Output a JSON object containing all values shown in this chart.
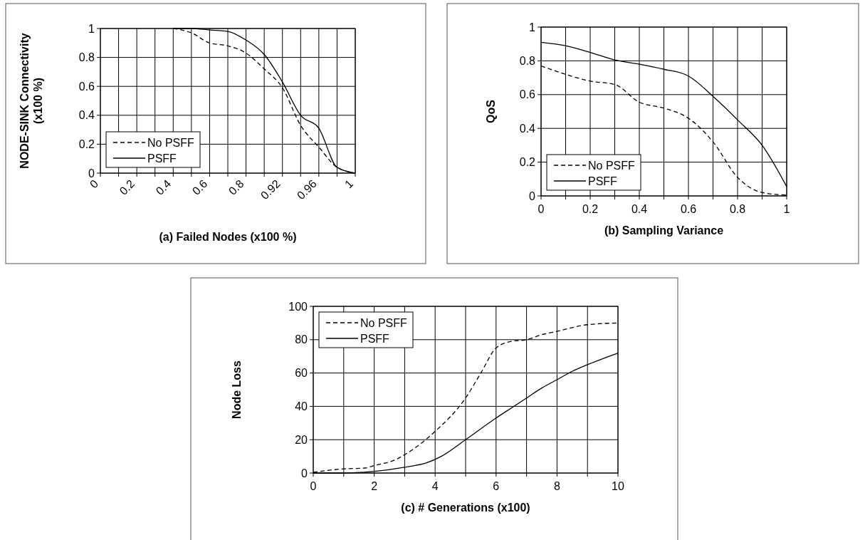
{
  "chart_data": [
    {
      "type": "line",
      "xlabel": "(a) Failed Nodes (x100 %)",
      "ylabel": "NODE-SINK Connectivity\n(x100 %)",
      "categories": [
        "0",
        null,
        "0.2",
        null,
        "0.4",
        null,
        "0.6",
        null,
        "0.8",
        null,
        "0.92",
        null,
        "0.96",
        null,
        "1"
      ],
      "ylim": [
        0,
        1
      ],
      "yticks": [
        0,
        0.2,
        0.4,
        0.6,
        0.8,
        1
      ],
      "grid": true,
      "legend": "bottom left",
      "series": [
        {
          "name": "No PSFF",
          "color": "#000000",
          "line_style": "dashed",
          "values": [
            null,
            null,
            null,
            null,
            1,
            0.97,
            0.9,
            0.88,
            0.83,
            0.72,
            0.59,
            0.33,
            0.18,
            0.04,
            0
          ]
        },
        {
          "name": "PSFF",
          "color": "#000000",
          "line_style": "solid",
          "values": [
            null,
            null,
            null,
            null,
            1,
            1,
            0.99,
            0.98,
            0.92,
            0.82,
            0.63,
            0.4,
            0.31,
            0.04,
            0
          ]
        }
      ]
    },
    {
      "type": "line",
      "xlabel": "(b)  Sampling Variance",
      "ylabel": "QoS",
      "xlim": [
        0,
        1
      ],
      "xticks": [
        0,
        {
          "value": 0.1,
          "label": null
        },
        0.2,
        {
          "value": 0.3,
          "label": null
        },
        0.4,
        {
          "value": 0.5,
          "label": null
        },
        0.6,
        {
          "value": 0.7,
          "label": null
        },
        0.8,
        {
          "value": 0.9,
          "label": null
        },
        1
      ],
      "ylim": [
        0,
        1
      ],
      "yticks": [
        0,
        0.2,
        0.4,
        0.6,
        0.8,
        1
      ],
      "grid": true,
      "legend": "bottom left",
      "x": [
        0,
        0.1,
        0.2,
        0.3,
        0.4,
        0.5,
        0.6,
        0.7,
        0.8,
        0.9,
        1
      ],
      "series": [
        {
          "name": "No PSFF",
          "color": "#000000",
          "line_style": "dashed",
          "values": [
            0.77,
            0.72,
            0.68,
            0.66,
            0.555,
            0.52,
            0.46,
            0.32,
            0.11,
            0.02,
            0.005
          ]
        },
        {
          "name": "PSFF",
          "color": "#000000",
          "line_style": "solid",
          "values": [
            0.91,
            0.89,
            0.85,
            0.805,
            0.78,
            0.75,
            0.71,
            0.59,
            0.45,
            0.3,
            0.055
          ]
        }
      ]
    },
    {
      "type": "line",
      "xlabel": "(c)  # Generations (x100)",
      "ylabel": "Node Loss",
      "xlim": [
        0,
        10
      ],
      "xticks": [
        0,
        {
          "value": 1,
          "label": null
        },
        2,
        {
          "value": 3,
          "label": null
        },
        4,
        {
          "value": 5,
          "label": null
        },
        6,
        {
          "value": 7,
          "label": null
        },
        8,
        {
          "value": 9,
          "label": null
        },
        10
      ],
      "ylim": [
        0,
        100
      ],
      "yticks": [
        0,
        20,
        40,
        60,
        80,
        100
      ],
      "grid": true,
      "legend": "top left",
      "series": [
        {
          "name": "No PSFF",
          "color": "#000000",
          "line_style": "dashed",
          "x": [
            0,
            1,
            1.7,
            2,
            2.7,
            3,
            4,
            5,
            5.5,
            6,
            6.5,
            7,
            7.5,
            8,
            9,
            10
          ],
          "values": [
            0.5,
            2.5,
            3,
            4.5,
            8,
            11,
            25,
            45,
            60,
            75,
            79,
            80,
            83,
            85,
            89,
            90
          ]
        },
        {
          "name": "PSFF",
          "color": "#000000",
          "line_style": "solid",
          "x": [
            0,
            1,
            2,
            3,
            3.7,
            4.2,
            5,
            6,
            6.5,
            7,
            7.5,
            8,
            8.5,
            9,
            10
          ],
          "values": [
            0,
            0,
            1,
            3.5,
            6,
            10,
            20,
            33,
            39,
            45,
            51,
            56,
            61,
            65,
            72
          ]
        }
      ]
    }
  ]
}
